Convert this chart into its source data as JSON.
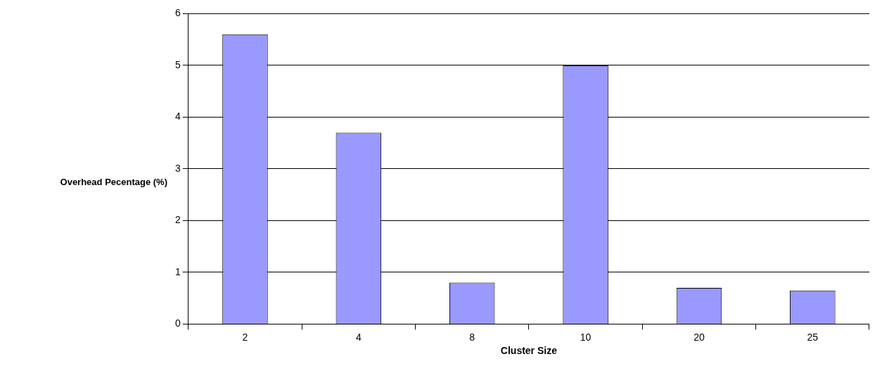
{
  "chart_data": {
    "type": "bar",
    "xlabel": "Cluster Size",
    "ylabel": "Overhead Pecentage (%)",
    "categories": [
      "2",
      "4",
      "8",
      "10",
      "20",
      "25"
    ],
    "values": [
      5.6,
      3.7,
      0.8,
      5.0,
      0.7,
      0.65
    ],
    "color": "#9999ff",
    "ylim": [
      0,
      6
    ],
    "yticks": [
      0,
      1,
      2,
      3,
      4,
      5,
      6
    ],
    "grid": "y"
  }
}
